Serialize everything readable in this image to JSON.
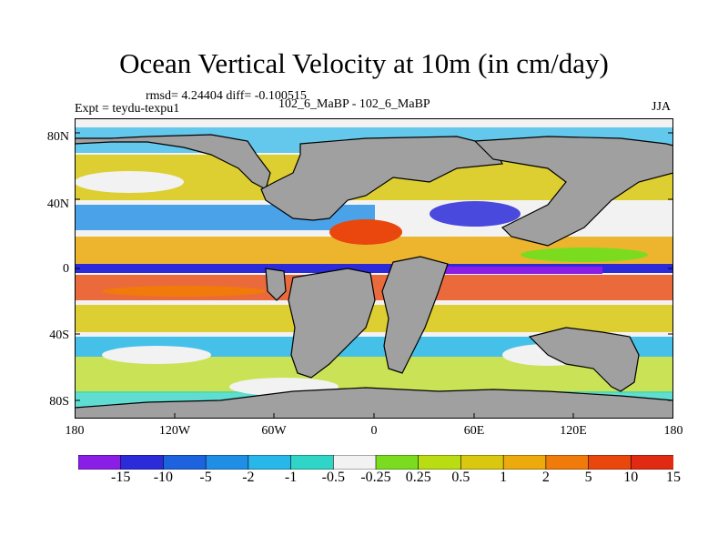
{
  "title": "Ocean Vertical Velocity at 10m (in cm/day)",
  "stats": "rmsd= 4.24404 diff= -0.100515",
  "experiment": "Expt = teydu-texpu1",
  "runs": "102_6_MaBP - 102_6_MaBP",
  "season": "JJA",
  "lat_labels": [
    "80N",
    "40N",
    "0",
    "40S",
    "80S"
  ],
  "lon_labels": [
    "180",
    "120W",
    "60W",
    "0",
    "60E",
    "120E",
    "180"
  ],
  "colorbar": {
    "colors": [
      "#8a1ee6",
      "#2b2bd9",
      "#1e63de",
      "#1f8fe6",
      "#27b7e8",
      "#2fd6c8",
      "#f2f2f2",
      "#7bdc1f",
      "#b9dc12",
      "#d9c80f",
      "#ecaa0c",
      "#f07a0a",
      "#e9470e",
      "#e02a12"
    ],
    "labels": [
      "-15",
      "-10",
      "-5",
      "-2",
      "-1",
      "-0.5",
      "-0.25",
      "0.25",
      "0.5",
      "1",
      "2",
      "5",
      "10",
      "15"
    ]
  },
  "colors": {
    "land": "#a0a0a0",
    "coast": "#000000",
    "ocean_background": "#f2f2f2"
  }
}
